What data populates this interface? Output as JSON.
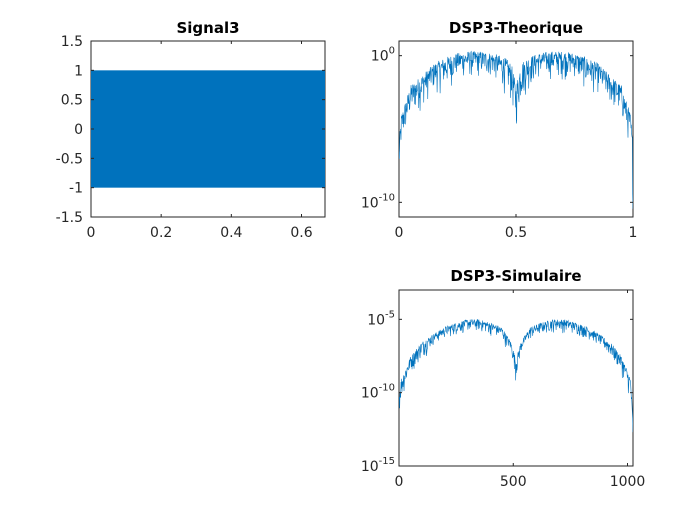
{
  "chart_data": [
    {
      "type": "line",
      "title": "Signal3",
      "xlabel": "",
      "ylabel": "",
      "xlim": [
        0,
        0.667
      ],
      "ylim": [
        -1.5,
        1.5
      ],
      "x_ticks": [
        "0",
        "0.2",
        "0.4",
        "0.6"
      ],
      "x_tick_values": [
        0,
        0.2,
        0.4,
        0.6
      ],
      "y_ticks": [
        "1.5",
        "1",
        "0.5",
        "0",
        "-0.5",
        "-1",
        "-1.5"
      ],
      "y_tick_values": [
        1.5,
        1,
        0.5,
        0,
        -0.5,
        -1,
        -1.5
      ],
      "signal_band": [
        -1,
        1
      ],
      "color": "#0072BD"
    },
    {
      "type": "line",
      "title": "DSP3-Theorique",
      "xlabel": "",
      "ylabel": "",
      "xlim": [
        0,
        1
      ],
      "ylim": [
        1e-11,
        10.0
      ],
      "yscale": "log",
      "x_ticks": [
        "0",
        "0.5",
        "1"
      ],
      "x_tick_values": [
        0,
        0.5,
        1
      ],
      "y_ticks": [
        {
          "base": "10",
          "exp": "0",
          "value": 1
        },
        {
          "base": "10",
          "exp": "-10",
          "value": 1e-10
        }
      ],
      "color": "#0072BD",
      "envelope": {
        "x": [
          0,
          0.01,
          0.05,
          0.1,
          0.15,
          0.2,
          0.25,
          0.3,
          0.35,
          0.4,
          0.45,
          0.48,
          0.5,
          0.52,
          0.55,
          0.6,
          0.65,
          0.7,
          0.75,
          0.8,
          0.85,
          0.9,
          0.95,
          0.99,
          1
        ],
        "y_upper": [
          1e-06,
          0.0001,
          0.01,
          0.05,
          0.3,
          0.8,
          1.5,
          2,
          2,
          1.5,
          0.8,
          0.3,
          0.01,
          0.3,
          0.8,
          1.5,
          2,
          2,
          1.5,
          0.8,
          0.3,
          0.05,
          0.01,
          0.0001,
          1e-06
        ],
        "y_lower": [
          1e-10,
          1e-07,
          1e-05,
          0.0001,
          0.001,
          0.001,
          0.01,
          0.01,
          0.01,
          0.01,
          0.001,
          0.0001,
          1e-06,
          0.0001,
          0.001,
          0.01,
          0.01,
          0.01,
          0.01,
          0.001,
          0.001,
          0.0001,
          1e-05,
          1e-07,
          1e-11
        ]
      }
    },
    {
      "type": "line",
      "title": "DSP3-Simulaire",
      "xlabel": "",
      "ylabel": "",
      "xlim": [
        0,
        1024
      ],
      "ylim": [
        1e-15,
        0.001
      ],
      "yscale": "log",
      "x_ticks": [
        "0",
        "500",
        "1000"
      ],
      "x_tick_values": [
        0,
        500,
        1000
      ],
      "y_ticks": [
        {
          "base": "10",
          "exp": "-5",
          "value": 1e-05
        },
        {
          "base": "10",
          "exp": "-10",
          "value": 1e-10
        },
        {
          "base": "10",
          "exp": "-15",
          "value": 1e-15
        }
      ],
      "color": "#0072BD",
      "envelope": {
        "x": [
          0,
          10,
          50,
          100,
          150,
          200,
          250,
          300,
          350,
          400,
          450,
          490,
          512,
          534,
          574,
          624,
          674,
          724,
          774,
          824,
          874,
          924,
          974,
          1014,
          1024
        ],
        "y_upper": [
          1e-10,
          1e-09,
          3e-08,
          3e-07,
          1e-06,
          3e-06,
          6e-06,
          1e-05,
          1e-05,
          6e-06,
          3e-06,
          3e-07,
          2e-08,
          3e-07,
          3e-06,
          6e-06,
          1e-05,
          1e-05,
          6e-06,
          3e-06,
          1e-06,
          3e-07,
          3e-08,
          1e-09,
          1e-12
        ],
        "y_lower": [
          1e-12,
          1e-11,
          1e-09,
          1e-08,
          1e-07,
          3e-07,
          5e-07,
          8e-07,
          8e-07,
          5e-07,
          2e-07,
          3e-08,
          3e-10,
          3e-08,
          2e-07,
          5e-07,
          8e-07,
          8e-07,
          5e-07,
          3e-07,
          1e-07,
          1e-08,
          1e-09,
          1e-11,
          1e-14
        ]
      }
    }
  ]
}
